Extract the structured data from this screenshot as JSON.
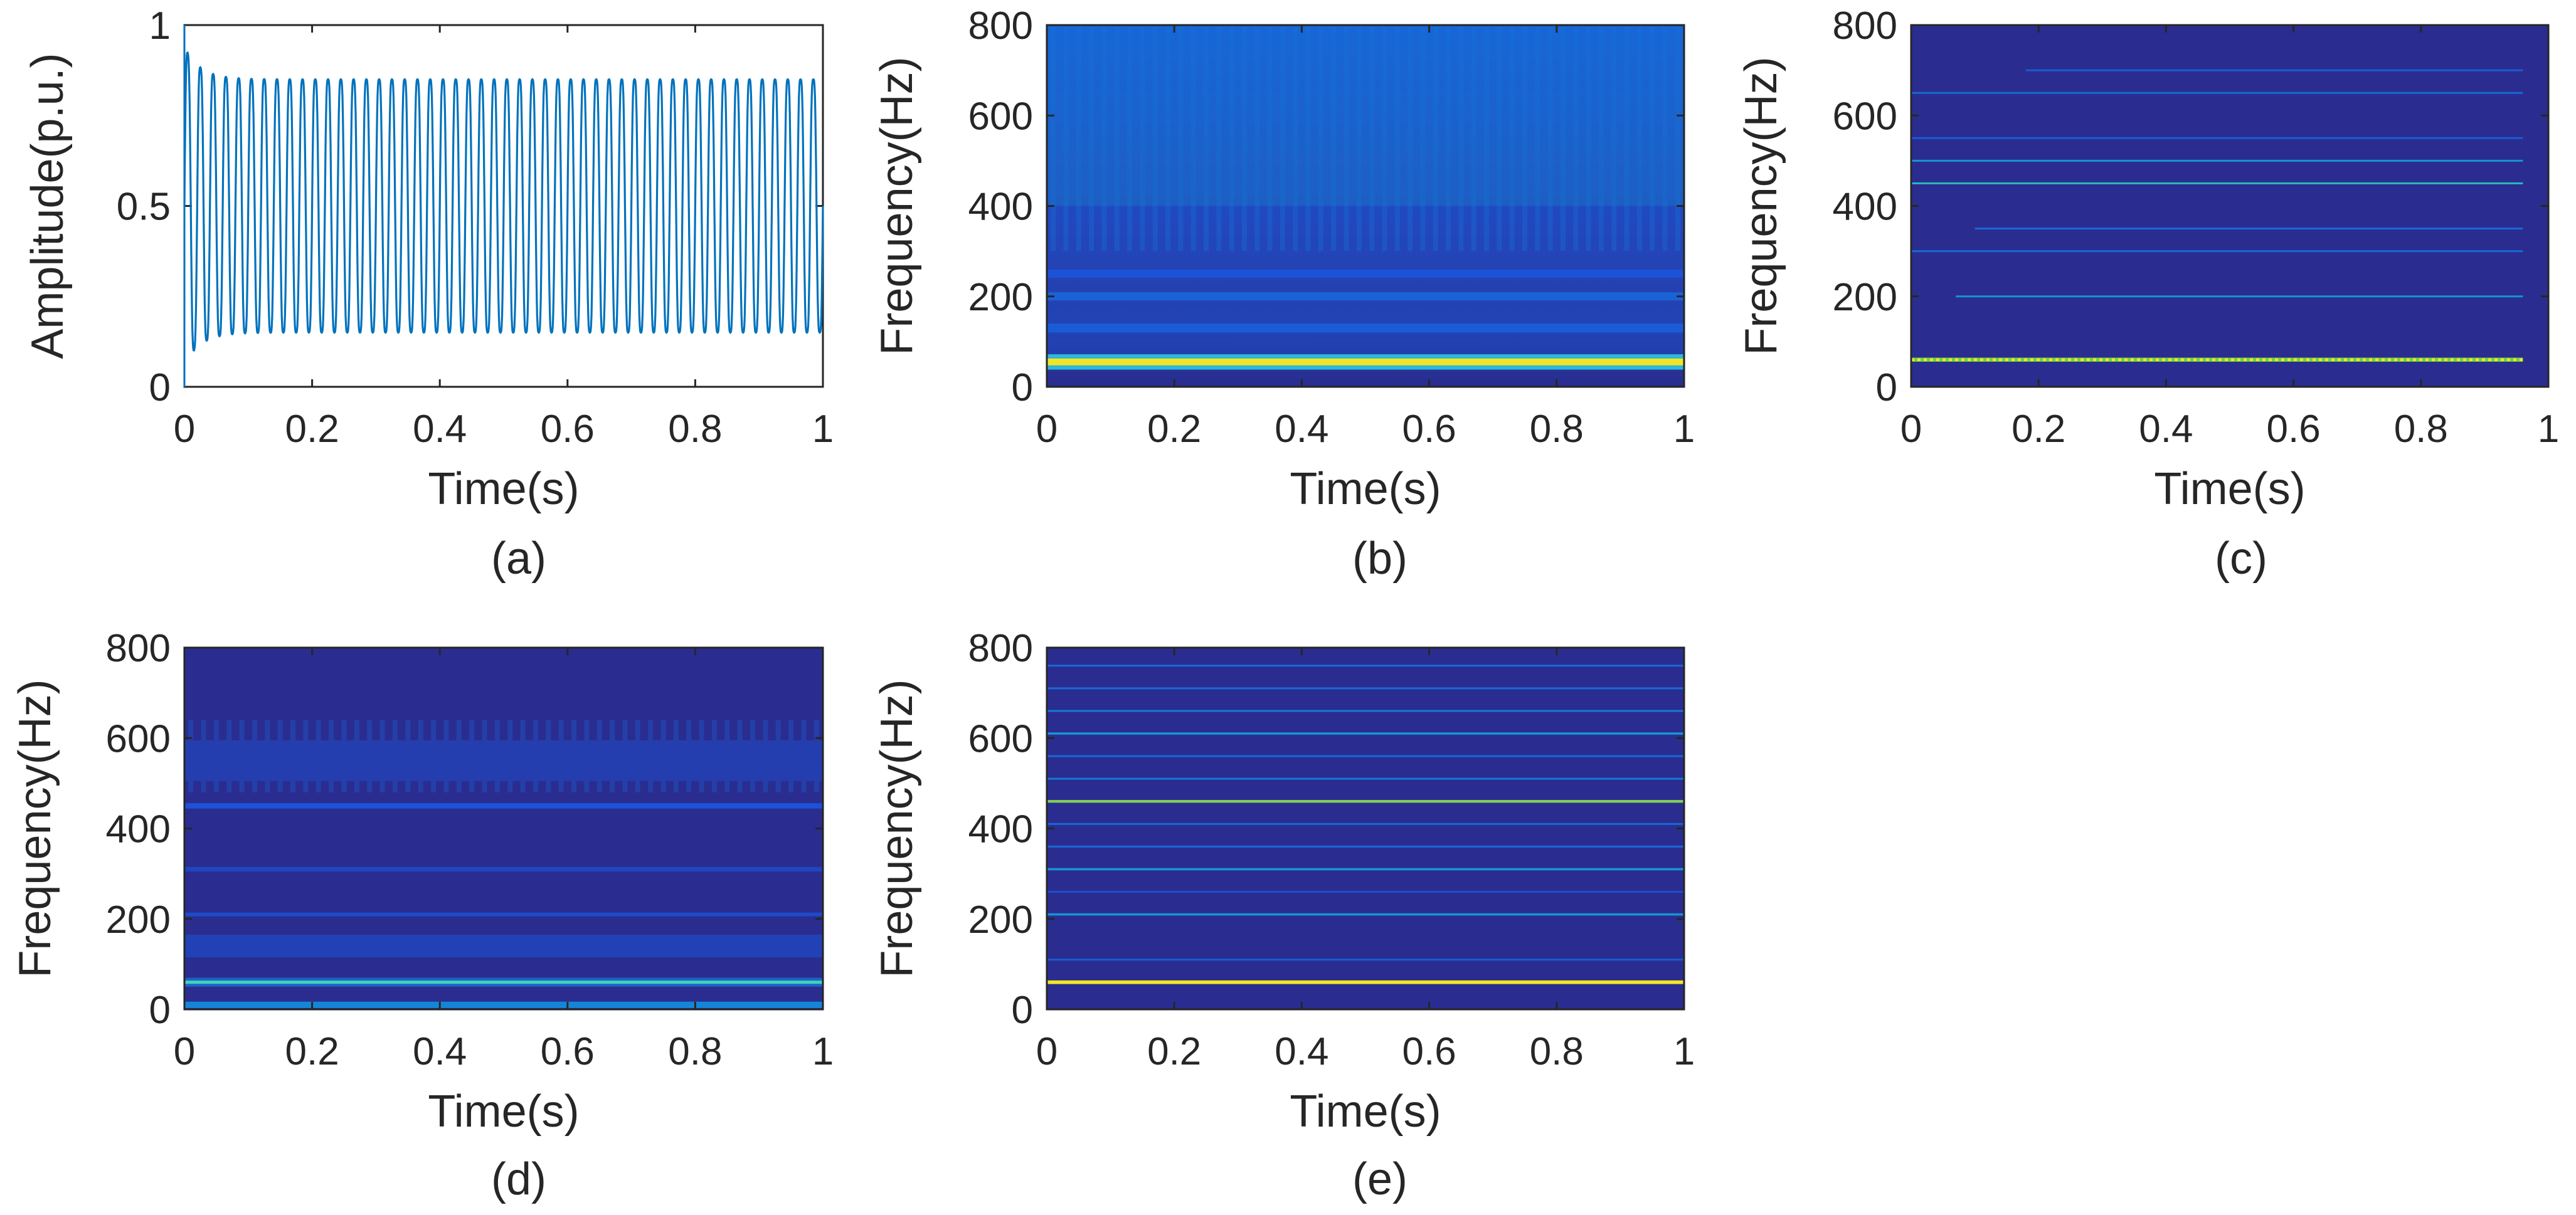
{
  "figure": {
    "panel_count": 5
  },
  "colors": {
    "background": "#2a2d8f",
    "band_mid": "#1c6fd6",
    "band_bright": "#2fb8d8",
    "band_yellow": "#f0e626",
    "band_green": "#6fd04a",
    "waveform": "#0072bd",
    "axes": "#262626"
  },
  "chart_data": [
    {
      "id": "a",
      "type": "line",
      "caption": "(a)",
      "xlabel": "Time(s)",
      "ylabel": "Amplitude(p.u.)",
      "xlim": [
        0,
        1
      ],
      "ylim": [
        0,
        1
      ],
      "xticks": [
        0,
        0.2,
        0.4,
        0.6,
        0.8,
        1
      ],
      "xtick_labels": [
        "0",
        "0.2",
        "0.4",
        "0.6",
        "0.8",
        "1"
      ],
      "yticks": [
        0,
        0.5,
        1
      ],
      "ytick_labels": [
        "0",
        "0.5",
        "1"
      ],
      "signal": {
        "frequency_hz": 50,
        "center": 0.5,
        "steady_amplitude": 0.39,
        "initial_max": 0.96,
        "initial_min": 0.0,
        "settle_time_s": 0.1,
        "samples_per_cycle": [
          0.23,
          0.38,
          0.5,
          0.62,
          0.77
        ]
      }
    },
    {
      "id": "b",
      "type": "heatmap",
      "caption": "(b)",
      "xlabel": "Time(s)",
      "ylabel": "Frequency(Hz)",
      "xlim": [
        0,
        1
      ],
      "ylim": [
        0,
        800
      ],
      "xticks": [
        0,
        0.2,
        0.4,
        0.6,
        0.8,
        1
      ],
      "xtick_labels": [
        "0",
        "0.2",
        "0.4",
        "0.6",
        "0.8",
        "1"
      ],
      "yticks": [
        0,
        200,
        400,
        600,
        800
      ],
      "ytick_labels": [
        "0",
        "200",
        "400",
        "600",
        "800"
      ],
      "background_level": 0.32,
      "broad_regions": [
        {
          "f_from": 70,
          "f_to": 400,
          "level": 0.2
        },
        {
          "f_from": 400,
          "f_to": 800,
          "level": 0.42
        }
      ],
      "bands": [
        {
          "f": 55,
          "width_hz": 34,
          "level": 1.0,
          "kind": "yellow"
        },
        {
          "f": 130,
          "width_hz": 20,
          "level": 0.25
        },
        {
          "f": 200,
          "width_hz": 18,
          "level": 0.28
        },
        {
          "f": 250,
          "width_hz": 18,
          "level": 0.22
        }
      ],
      "vertical_stripes": {
        "count": 50,
        "level": 0.18,
        "f_from": 300,
        "f_to": 800
      }
    },
    {
      "id": "c",
      "type": "heatmap",
      "caption": "(c)",
      "xlabel": "Time(s)",
      "ylabel": "Frequency(Hz)",
      "xlim": [
        0,
        1
      ],
      "ylim": [
        0,
        800
      ],
      "xticks": [
        0,
        0.2,
        0.4,
        0.6,
        0.8,
        1
      ],
      "xtick_labels": [
        "0",
        "0.2",
        "0.4",
        "0.6",
        "0.8",
        "1"
      ],
      "yticks": [
        0,
        200,
        400,
        600,
        800
      ],
      "ytick_labels": [
        "0",
        "200",
        "400",
        "600",
        "800"
      ],
      "data_xmax": 0.96,
      "background_level": 0.0,
      "bands": [
        {
          "f": 60,
          "width_hz": 9,
          "level": 1.0,
          "kind": "dotted_yellow_green"
        },
        {
          "f": 200,
          "width_hz": 4,
          "level": 0.45,
          "t_from": 0.07
        },
        {
          "f": 300,
          "width_hz": 4,
          "level": 0.3
        },
        {
          "f": 350,
          "width_hz": 4,
          "level": 0.3,
          "t_from": 0.1
        },
        {
          "f": 450,
          "width_hz": 4,
          "level": 0.6
        },
        {
          "f": 500,
          "width_hz": 4,
          "level": 0.45
        },
        {
          "f": 550,
          "width_hz": 4,
          "level": 0.25
        },
        {
          "f": 650,
          "width_hz": 4,
          "level": 0.3
        },
        {
          "f": 700,
          "width_hz": 4,
          "level": 0.25,
          "t_from": 0.18
        },
        {
          "f": 800,
          "width_hz": 4,
          "level": 0.25
        }
      ]
    },
    {
      "id": "d",
      "type": "heatmap",
      "caption": "(d)",
      "xlabel": "Time(s)",
      "ylabel": "Frequency(Hz)",
      "xlim": [
        0,
        1
      ],
      "ylim": [
        0,
        800
      ],
      "xticks": [
        0,
        0.2,
        0.4,
        0.6,
        0.8,
        1
      ],
      "xtick_labels": [
        "0",
        "0.2",
        "0.4",
        "0.6",
        "0.8",
        "1"
      ],
      "yticks": [
        0,
        200,
        400,
        600,
        800
      ],
      "ytick_labels": [
        "0",
        "200",
        "400",
        "600",
        "800"
      ],
      "background_level": 0.0,
      "bands": [
        {
          "f": 10,
          "width_hz": 14,
          "level": 0.4
        },
        {
          "f": 60,
          "width_hz": 7,
          "level": 0.7,
          "kind": "cyan"
        },
        {
          "f": 140,
          "width_hz": 50,
          "level": 0.12
        },
        {
          "f": 210,
          "width_hz": 8,
          "level": 0.18
        },
        {
          "f": 310,
          "width_hz": 10,
          "level": 0.15
        },
        {
          "f": 450,
          "width_hz": 12,
          "level": 0.22
        },
        {
          "f": 550,
          "width_hz": 90,
          "level": 0.1
        }
      ],
      "vertical_stripes": {
        "count": 50,
        "level": 0.12,
        "f_from": 480,
        "f_to": 640
      }
    },
    {
      "id": "e",
      "type": "heatmap",
      "caption": "(e)",
      "xlabel": "Time(s)",
      "ylabel": "Frequency(Hz)",
      "xlim": [
        0,
        1
      ],
      "ylim": [
        0,
        800
      ],
      "xticks": [
        0,
        0.2,
        0.4,
        0.6,
        0.8,
        1
      ],
      "xtick_labels": [
        "0",
        "0.2",
        "0.4",
        "0.6",
        "0.8",
        "1"
      ],
      "yticks": [
        0,
        200,
        400,
        600,
        800
      ],
      "ytick_labels": [
        "0",
        "200",
        "400",
        "600",
        "800"
      ],
      "background_level": 0.0,
      "bands": [
        {
          "f": 60,
          "width_hz": 8,
          "level": 1.0,
          "kind": "yellow"
        },
        {
          "f": 110,
          "width_hz": 4,
          "level": 0.25
        },
        {
          "f": 210,
          "width_hz": 5,
          "level": 0.45
        },
        {
          "f": 260,
          "width_hz": 4,
          "level": 0.2
        },
        {
          "f": 310,
          "width_hz": 5,
          "level": 0.45
        },
        {
          "f": 360,
          "width_hz": 4,
          "level": 0.3
        },
        {
          "f": 410,
          "width_hz": 4,
          "level": 0.3
        },
        {
          "f": 460,
          "width_hz": 6,
          "level": 0.8
        },
        {
          "f": 510,
          "width_hz": 4,
          "level": 0.35
        },
        {
          "f": 560,
          "width_hz": 4,
          "level": 0.3
        },
        {
          "f": 610,
          "width_hz": 5,
          "level": 0.45
        },
        {
          "f": 660,
          "width_hz": 4,
          "level": 0.35
        },
        {
          "f": 710,
          "width_hz": 4,
          "level": 0.3
        },
        {
          "f": 760,
          "width_hz": 4,
          "level": 0.3
        }
      ]
    }
  ]
}
